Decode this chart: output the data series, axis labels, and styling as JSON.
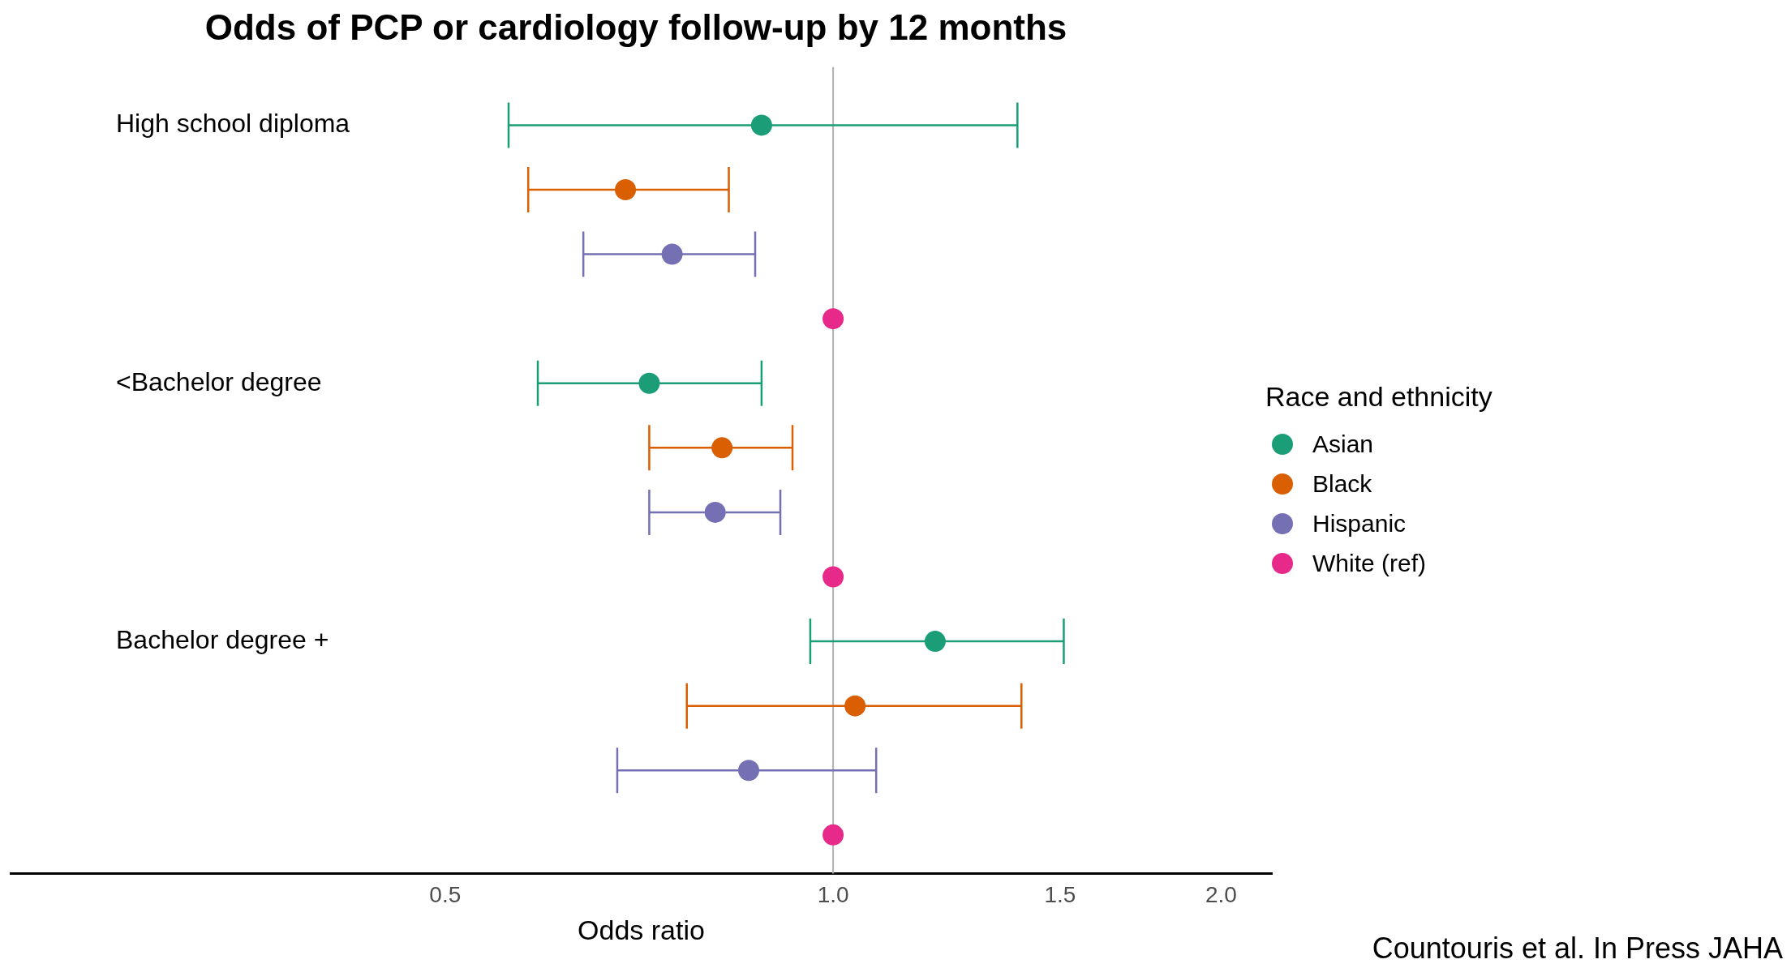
{
  "chart_data": {
    "type": "scatter",
    "orientation": "horizontal",
    "title": "Odds of PCP or cardiology follow-up by 12 months",
    "xlabel": "Odds ratio",
    "legend_title": "Race and ethnicity",
    "legend": "right",
    "marker": "circle",
    "log": "x",
    "categories": [
      "High school diploma",
      "<Bachelor degree",
      "Bachelor degree +"
    ],
    "xlim": [
      0.23,
      2.19
    ],
    "xticks": [
      {
        "value": 0.5,
        "label": "0.5"
      },
      {
        "value": 1,
        "label": "1.0"
      },
      {
        "value": 1.5,
        "label": "1.5"
      },
      {
        "value": 2,
        "label": "2.0"
      }
    ],
    "series": [
      {
        "name": "Asian",
        "color": "#1b9e77",
        "values": [
          0.88,
          0.72,
          1.2
        ],
        "errors": [
          [
            0.56,
            1.39
          ],
          [
            0.59,
            0.88
          ],
          [
            0.96,
            1.51
          ]
        ]
      },
      {
        "name": "Black",
        "color": "#d95f02",
        "values": [
          0.69,
          0.82,
          1.04
        ],
        "errors": [
          [
            0.58,
            0.83
          ],
          [
            0.72,
            0.93
          ],
          [
            0.77,
            1.4
          ]
        ]
      },
      {
        "name": "Hispanic",
        "color": "#7570b3",
        "values": [
          0.75,
          0.81,
          0.86
        ],
        "errors": [
          [
            0.64,
            0.87
          ],
          [
            0.72,
            0.91
          ],
          [
            0.68,
            1.08
          ]
        ]
      },
      {
        "name": "White (ref)",
        "color": "#e7298a",
        "values": [
          1,
          1,
          1
        ],
        "errors": [
          null,
          null,
          null
        ]
      }
    ],
    "ref_lines": [
      {
        "axis": "x",
        "value": 1,
        "color": "#b0b0b0"
      }
    ],
    "annotations": [
      "Countouris et al. In Press JAHA"
    ]
  }
}
